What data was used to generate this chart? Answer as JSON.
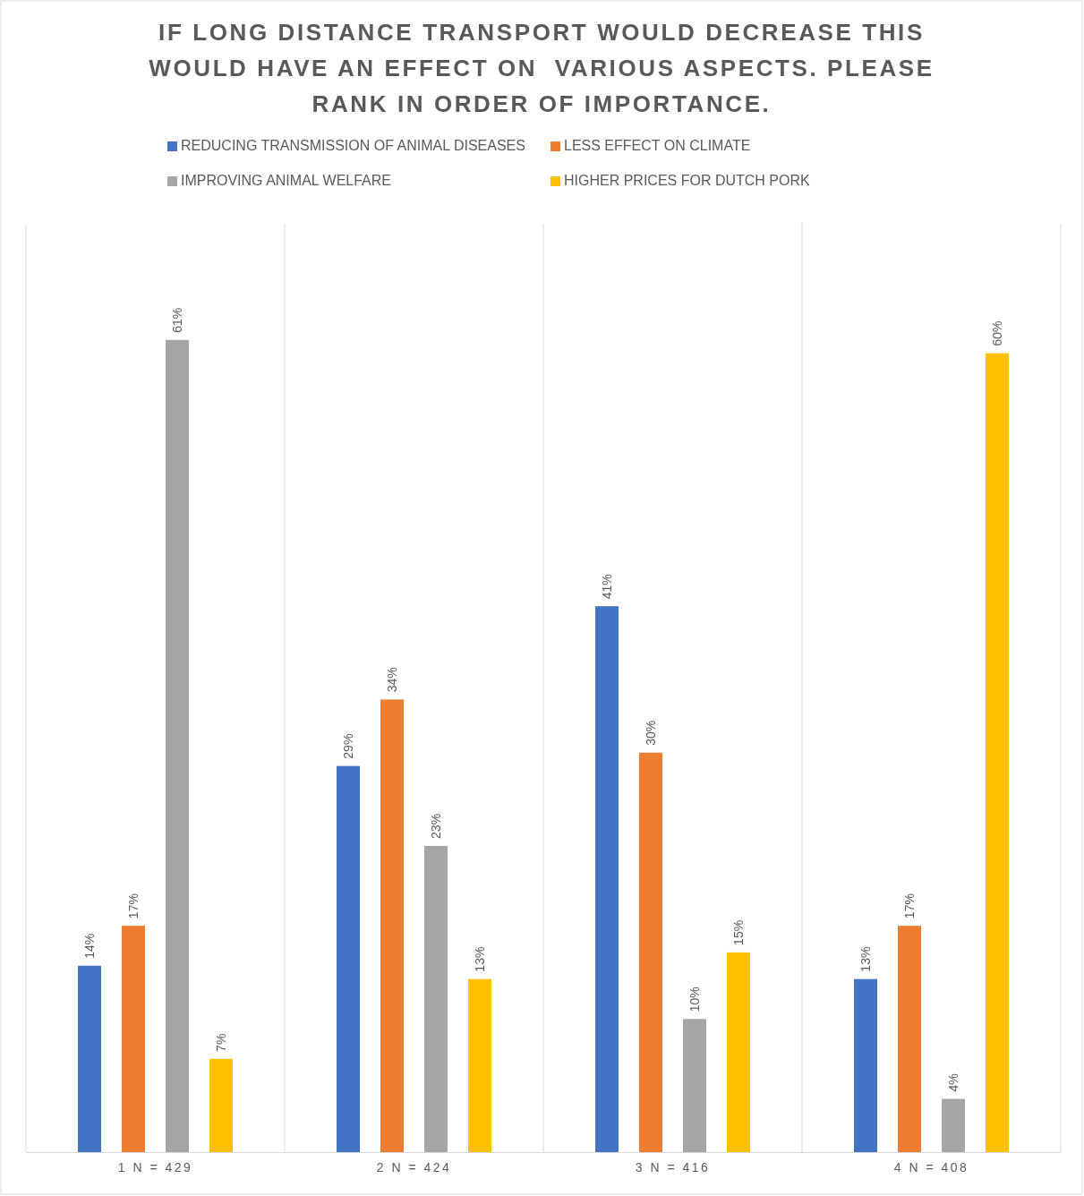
{
  "chart_data": {
    "type": "bar",
    "title": "IF LONG DISTANCE TRANSPORT WOULD DECREASE THIS WOULD HAVE AN EFFECT ON  VARIOUS ASPECTS. PLEASE RANK IN ORDER OF IMPORTANCE.",
    "categories": [
      "1 N = 429",
      "2 N = 424",
      "3 N = 416",
      "4 N = 408"
    ],
    "series": [
      {
        "name": "REDUCING TRANSMISSION OF ANIMAL DISEASES",
        "color": "#4472c4",
        "values": [
          14,
          29,
          41,
          13
        ],
        "value_labels": [
          "14%",
          "29%",
          "41%",
          "13%"
        ]
      },
      {
        "name": "LESS EFFECT ON CLIMATE",
        "color": "#ed7d31",
        "values": [
          17,
          34,
          30,
          17
        ],
        "value_labels": [
          "17%",
          "34%",
          "30%",
          "17%"
        ]
      },
      {
        "name": "IMPROVING ANIMAL WELFARE",
        "color": "#a5a5a5",
        "values": [
          61,
          23,
          10,
          4
        ],
        "value_labels": [
          "61%",
          "23%",
          "10%",
          "4%"
        ]
      },
      {
        "name": "HIGHER PRICES FOR DUTCH PORK",
        "color": "#ffc000",
        "values": [
          7,
          13,
          15,
          60
        ],
        "value_labels": [
          "7%",
          "13%",
          "15%",
          "60%"
        ]
      }
    ],
    "grid": "x",
    "legend": "top"
  }
}
